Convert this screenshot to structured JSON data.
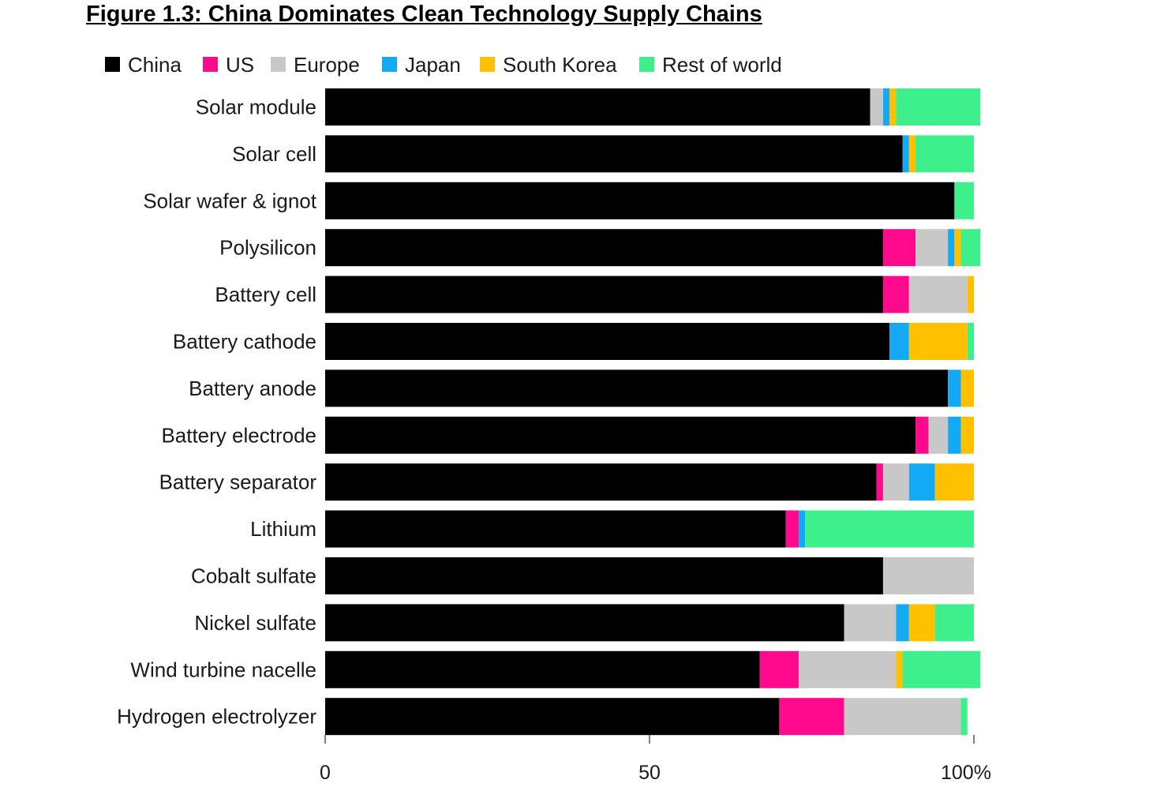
{
  "title": "Figure 1.3: China Dominates Clean Technology Supply Chains",
  "chart_data": {
    "type": "bar",
    "orientation": "horizontal",
    "stacked": true,
    "categories": [
      "Solar module",
      "Solar cell",
      "Solar wafer & ignot",
      "Polysilicon",
      "Battery cell",
      "Battery cathode",
      "Battery anode",
      "Battery electrode",
      "Battery separator",
      "Lithium",
      "Cobalt sulfate",
      "Nickel sulfate",
      "Wind turbine nacelle",
      "Hydrogen electrolyzer"
    ],
    "series": [
      {
        "name": "China",
        "color": "#000000",
        "values": [
          84,
          89,
          97,
          86,
          86,
          87,
          96,
          91,
          85,
          71,
          86,
          80,
          67,
          70
        ]
      },
      {
        "name": "US",
        "color": "#ff0a8c",
        "values": [
          0,
          0,
          0,
          5,
          4,
          0,
          0,
          2,
          1,
          2,
          0,
          0,
          6,
          10
        ]
      },
      {
        "name": "Europe",
        "color": "#c8c8c8",
        "values": [
          2,
          0,
          0,
          5,
          9,
          0,
          0,
          3,
          4,
          0,
          14,
          8,
          15,
          18
        ]
      },
      {
        "name": "Japan",
        "color": "#14a9f5",
        "values": [
          1,
          1,
          0,
          1,
          0,
          3,
          2,
          2,
          4,
          1,
          0,
          2,
          0,
          0
        ]
      },
      {
        "name": "South Korea",
        "color": "#ffc000",
        "values": [
          1,
          1,
          0,
          1,
          1,
          9,
          2,
          2,
          6,
          0,
          0,
          4,
          1,
          0
        ]
      },
      {
        "name": "Rest of world",
        "color": "#3ef08c",
        "values": [
          13,
          9,
          3,
          3,
          0,
          1,
          0,
          0,
          0,
          26,
          0,
          6,
          12,
          1
        ]
      }
    ],
    "xlim": [
      0,
      100
    ],
    "xticks": [
      {
        "value": 0,
        "label": "0"
      },
      {
        "value": 50,
        "label": "50"
      },
      {
        "value": 100,
        "label": "100%"
      }
    ],
    "xlabel": "",
    "ylabel": "",
    "legend_position": "top-left",
    "grid": false
  }
}
